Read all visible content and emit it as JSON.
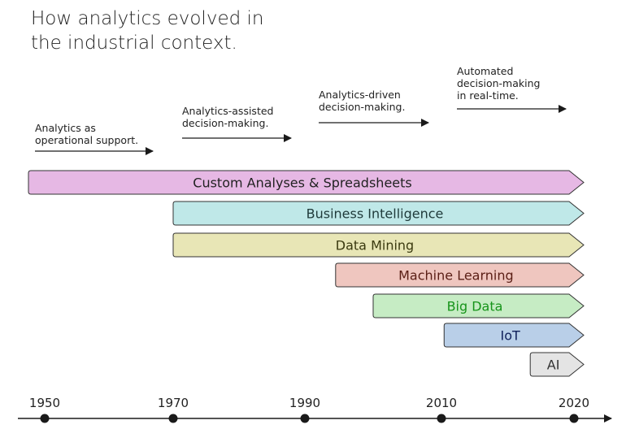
{
  "title": {
    "line1": "How analytics evolved in",
    "line2": "the industrial context."
  },
  "eras": [
    {
      "lines": [
        "Analytics as",
        "operational support."
      ]
    },
    {
      "lines": [
        "Analytics-assisted",
        "decision-making."
      ]
    },
    {
      "lines": [
        "Analytics-driven",
        "decision-making."
      ]
    },
    {
      "lines": [
        "Automated",
        "decision-making",
        "in real-time."
      ]
    }
  ],
  "bars": [
    {
      "label": "Custom Analyses & Spreadsheets",
      "start": 1948,
      "fill": "#e6b8e4",
      "text_color": "#222222"
    },
    {
      "label": "Business Intelligence",
      "start": 1970,
      "fill": "#bfe8e8",
      "text_color": "#1f3a3a"
    },
    {
      "label": "Data Mining",
      "start": 1970,
      "fill": "#e8e6b6",
      "text_color": "#3b3a10"
    },
    {
      "label": "Machine Learning",
      "start": 1994.5,
      "fill": "#efc6bf",
      "text_color": "#5a1e15"
    },
    {
      "label": "Big Data",
      "start": 2000,
      "fill": "#c6ecc4",
      "text_color": "#17941a"
    },
    {
      "label": "IoT",
      "start": 2010.2,
      "fill": "#b9cfe8",
      "text_color": "#10205a"
    },
    {
      "label": "AI",
      "start": 2016.7,
      "fill": "#e4e4e4",
      "text_color": "#333333"
    }
  ],
  "bar_end": 2022,
  "timeline": {
    "ticks": [
      {
        "label": "1950",
        "year": 1950
      },
      {
        "label": "1970",
        "year": 1970
      },
      {
        "label": "1990",
        "year": 1990
      },
      {
        "label": "2010",
        "year": 2010
      },
      {
        "label": "2020",
        "year": 2020
      }
    ]
  },
  "colors": {
    "outline": "#333333",
    "axis": "#1a1a1a"
  }
}
